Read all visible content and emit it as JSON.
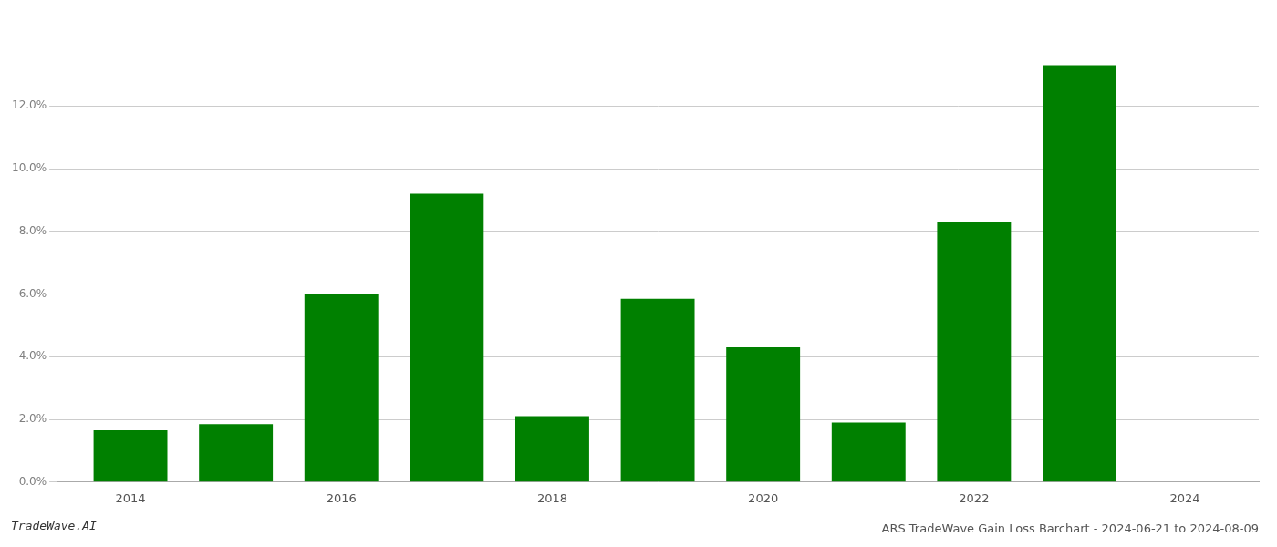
{
  "chart_data": {
    "type": "bar",
    "title": "ARS TradeWave Gain Loss Barchart - 2024-06-21 to 2024-08-09",
    "annotations": [
      "TradeWave.AI"
    ],
    "x": [
      2014,
      2015,
      2016,
      2017,
      2018,
      2019,
      2020,
      2021,
      2022,
      2023
    ],
    "values": [
      0.0165,
      0.0185,
      0.06,
      0.092,
      0.021,
      0.0585,
      0.043,
      0.019,
      0.083,
      0.133
    ],
    "color": "#008000",
    "xlim": [
      2013.3,
      2024.7
    ],
    "xticks": [
      2014,
      2016,
      2018,
      2020,
      2022,
      2024
    ],
    "ylim": [
      0,
      0.148
    ],
    "yticks": [
      {
        "value": 0.0,
        "label": "0.0%"
      },
      {
        "value": 0.02,
        "label": "2.0%"
      },
      {
        "value": 0.04,
        "label": "4.0%"
      },
      {
        "value": 0.06,
        "label": "6.0%"
      },
      {
        "value": 0.08,
        "label": "8.0%"
      },
      {
        "value": 0.1,
        "label": "10.0%"
      },
      {
        "value": 0.12,
        "label": "12.0%"
      }
    ],
    "grid": true
  }
}
